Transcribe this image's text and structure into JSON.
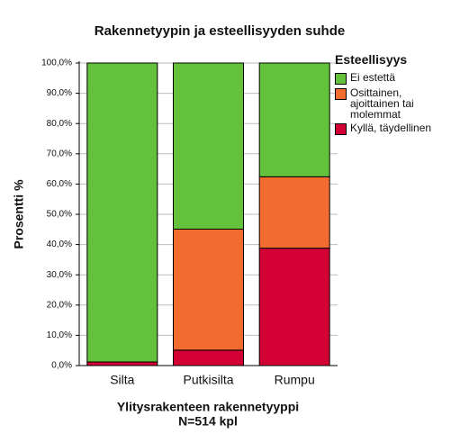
{
  "chart_data": {
    "type": "stacked_bar",
    "title": "Rakennetyypin ja esteellisyyden suhde",
    "ylabel": "Prosentti %",
    "xlabel": [
      "Ylitysrakenteen rakennetyyppi",
      "N=514 kpl"
    ],
    "categories": [
      "Silta",
      "Putkisilta",
      "Rumpu"
    ],
    "legend_title": "Esteellisyys",
    "series": [
      {
        "name": "Kyllä, täydellinen",
        "color": "#d30035",
        "values": [
          1.2,
          5.1,
          38.8
        ]
      },
      {
        "name": "Osittainen, ajoittainen tai molemmat",
        "color": "#f26b2f",
        "values": [
          0,
          40,
          23.6
        ]
      },
      {
        "name": "Ei estettä",
        "color": "#63c13c",
        "values": [
          98.8,
          54.9,
          37.6
        ]
      }
    ],
    "ylim": [
      0,
      100
    ],
    "yticks": [
      {
        "value": 0,
        "label": "0,0%"
      },
      {
        "value": 10,
        "label": "10,0%"
      },
      {
        "value": 20,
        "label": "20,0%"
      },
      {
        "value": 30,
        "label": "30,0%"
      },
      {
        "value": 40,
        "label": "40,0%"
      },
      {
        "value": 50,
        "label": "50,0%"
      },
      {
        "value": 60,
        "label": "60,0%"
      },
      {
        "value": 70,
        "label": "70,0%"
      },
      {
        "value": 80,
        "label": "80,0%"
      },
      {
        "value": 90,
        "label": "90,0%"
      },
      {
        "value": 100,
        "label": "100,0%"
      }
    ],
    "grid": true
  }
}
